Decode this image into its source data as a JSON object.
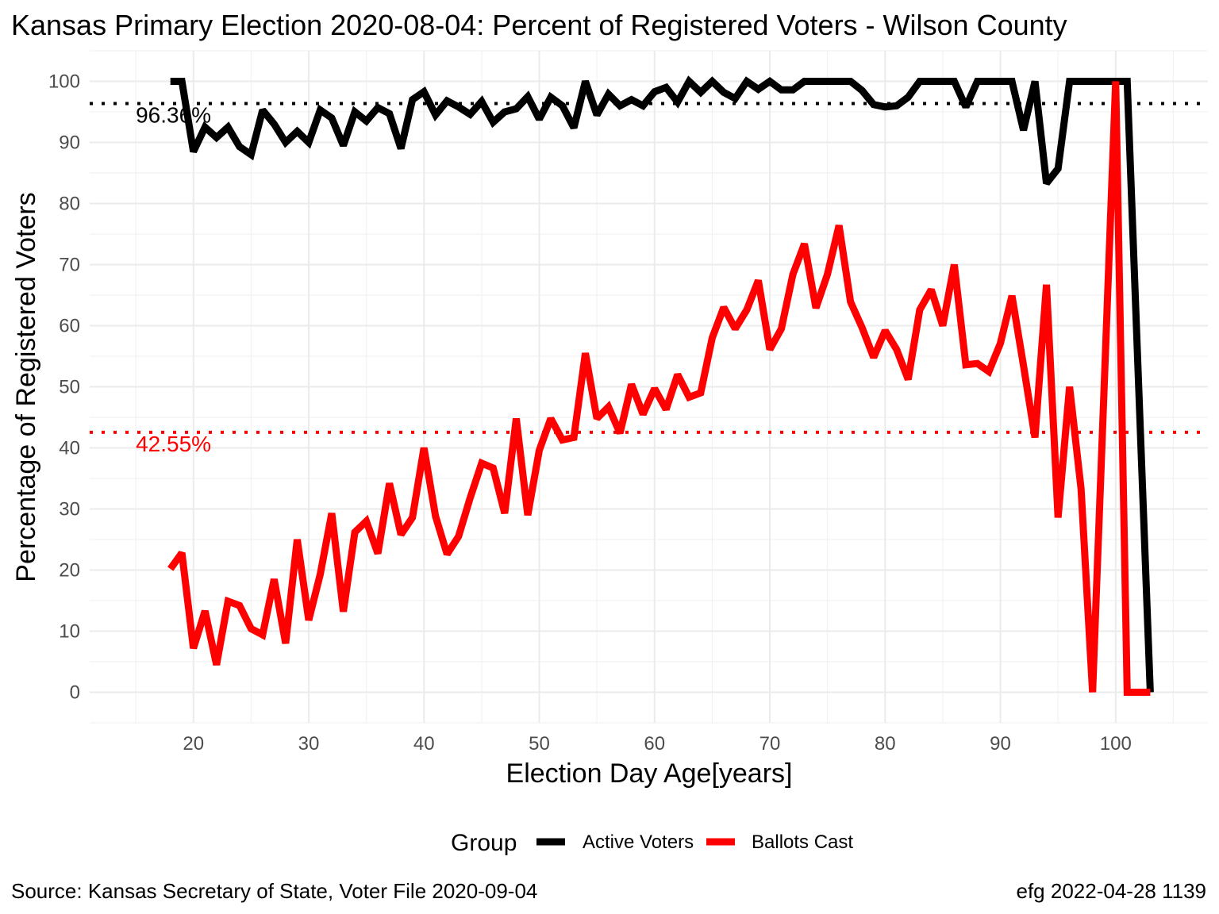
{
  "chart_data": {
    "type": "line",
    "title": "Kansas Primary Election 2020-08-04:  Percent of Registered Voters - Wilson County",
    "xlabel": "Election Day Age[years]",
    "ylabel": "Percentage of Registered Voters",
    "xlim": [
      11,
      108
    ],
    "ylim": [
      -5,
      105
    ],
    "x_ticks": [
      20,
      30,
      40,
      50,
      60,
      70,
      80,
      90,
      100
    ],
    "y_ticks": [
      0,
      10,
      20,
      30,
      40,
      50,
      60,
      70,
      80,
      90,
      100
    ],
    "grid": true,
    "legend": {
      "title": "Group",
      "position": "bottom",
      "entries": [
        {
          "label": "Active Voters",
          "color": "#000000"
        },
        {
          "label": "Ballots Cast",
          "color": "#ff0000"
        }
      ]
    },
    "reference_lines": [
      {
        "label": "96.36%",
        "value": 96.36,
        "color": "#000000"
      },
      {
        "label": "42.55%",
        "value": 42.55,
        "color": "#ff0000"
      }
    ],
    "x": [
      18,
      19,
      20,
      21,
      22,
      23,
      24,
      25,
      26,
      27,
      28,
      29,
      30,
      31,
      32,
      33,
      34,
      35,
      36,
      37,
      38,
      39,
      40,
      41,
      42,
      43,
      44,
      45,
      46,
      47,
      48,
      49,
      50,
      51,
      52,
      53,
      54,
      55,
      56,
      57,
      58,
      59,
      60,
      61,
      62,
      63,
      64,
      65,
      66,
      67,
      68,
      69,
      70,
      71,
      72,
      73,
      74,
      75,
      76,
      77,
      78,
      79,
      80,
      81,
      82,
      83,
      84,
      85,
      86,
      87,
      88,
      89,
      90,
      91,
      92,
      93,
      94,
      95,
      96,
      97,
      98,
      99,
      100,
      101,
      102,
      103
    ],
    "series": [
      {
        "name": "Active Voters",
        "color": "#000000",
        "values": [
          100,
          100,
          88.5,
          92.5,
          90.8,
          92.5,
          89.3,
          88,
          95.3,
          93,
          90,
          91.8,
          90,
          95.3,
          94,
          89.5,
          95,
          93.5,
          95.7,
          94.7,
          89,
          97,
          98.3,
          94.5,
          96.8,
          95.8,
          94.6,
          96.7,
          93.3,
          95,
          95.5,
          97.5,
          93.8,
          97.4,
          96,
          92.4,
          100,
          94.5,
          97.9,
          96,
          97,
          96,
          98.3,
          99,
          96.6,
          100,
          98.2,
          100,
          98.2,
          97.2,
          100,
          98.7,
          100,
          98.6,
          98.6,
          100,
          100,
          100,
          100,
          100,
          98.5,
          96.2,
          95.8,
          96,
          97.4,
          100,
          100,
          100,
          100,
          95.8,
          100,
          100,
          100,
          100,
          92,
          100,
          83.3,
          85.7,
          100,
          100,
          100,
          100,
          100,
          100,
          50,
          0
        ]
      },
      {
        "name": "Ballots Cast",
        "color": "#ff0000",
        "values": [
          20.2,
          22.8,
          7.2,
          13.3,
          4.5,
          14.9,
          14.2,
          10.4,
          9.4,
          18.5,
          8,
          25,
          11.8,
          19.3,
          29.3,
          13.2,
          26.2,
          28,
          22.7,
          34.2,
          25.8,
          28.6,
          40,
          28.8,
          22.6,
          25.5,
          31.8,
          37.5,
          36.7,
          29.3,
          44.8,
          29,
          39.6,
          44.8,
          41.3,
          41.7,
          55.5,
          44.8,
          46.7,
          42.4,
          50.4,
          45.5,
          49.7,
          46.3,
          52,
          48.3,
          49,
          58,
          63,
          59.5,
          62.6,
          67.4,
          56.1,
          59.5,
          68.4,
          73.4,
          62.9,
          68.4,
          76.4,
          63.9,
          59.7,
          54.8,
          59.2,
          56.1,
          51.2,
          62.6,
          65.9,
          60,
          70,
          53.6,
          53.8,
          52.5,
          57.1,
          64.9,
          53.5,
          41.7,
          66.7,
          28.6,
          50,
          33.3,
          0,
          50,
          100,
          0,
          0,
          0
        ]
      }
    ]
  },
  "caption_left": "Source:  Kansas Secretary of State, Voter File  2020-09-04",
  "caption_right": "efg 2022-04-28 1139"
}
